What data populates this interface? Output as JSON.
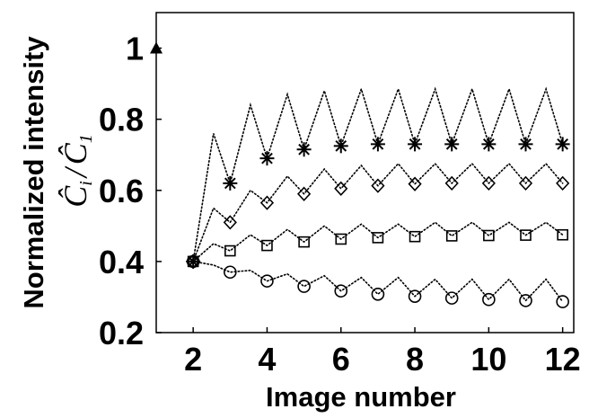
{
  "chart_data": {
    "type": "line",
    "xlabel": "Image number",
    "ylabel": "Normalized intensity",
    "ylabel_math": {
      "numerator": "Ĉ",
      "numerator_sub": "i",
      "slash": "/",
      "denominator": "Ĉ",
      "denominator_sub": "1"
    },
    "xlim": [
      1,
      12.3
    ],
    "ylim": [
      0.2,
      1.1
    ],
    "xticks": [
      2,
      4,
      6,
      8,
      10,
      12
    ],
    "xtick_labels": [
      "2",
      "4",
      "6",
      "8",
      "10",
      "12"
    ],
    "yticks": [
      0.2,
      0.4,
      0.6,
      0.8,
      1.0
    ],
    "ytick_labels": [
      "0.2",
      "0.4",
      "0.6",
      "0.8",
      "1"
    ],
    "grid": false,
    "reference_point": {
      "x": 1,
      "y": 1.0,
      "marker": "triangle"
    },
    "sawtooth_peaks": [
      {
        "marker": "star",
        "x": [
          2.55,
          3.55,
          4.55,
          5.55,
          6.55,
          7.55,
          8.55,
          9.55,
          10.55,
          11.55
        ],
        "y": [
          0.76,
          0.84,
          0.87,
          0.88,
          0.885,
          0.885,
          0.885,
          0.885,
          0.885,
          0.885
        ]
      },
      {
        "marker": "diamond",
        "x": [
          2.55,
          3.55,
          4.55,
          5.55,
          6.55,
          7.55,
          8.55,
          9.55,
          10.55,
          11.55
        ],
        "y": [
          0.55,
          0.6,
          0.64,
          0.66,
          0.67,
          0.675,
          0.675,
          0.675,
          0.675,
          0.675
        ]
      },
      {
        "marker": "square",
        "x": [
          2.55,
          3.55,
          4.55,
          5.55,
          6.55,
          7.55,
          8.55,
          9.55,
          10.55,
          11.55
        ],
        "y": [
          0.45,
          0.475,
          0.49,
          0.5,
          0.505,
          0.505,
          0.51,
          0.51,
          0.51,
          0.51
        ]
      },
      {
        "marker": "circle",
        "x": [
          2.55,
          3.55,
          4.55,
          5.55,
          6.55,
          7.55,
          8.55,
          9.55,
          10.55,
          11.55
        ],
        "y": [
          0.39,
          0.375,
          0.365,
          0.36,
          0.355,
          0.355,
          0.35,
          0.35,
          0.35,
          0.35
        ]
      }
    ],
    "series": [
      {
        "marker": "star",
        "x": [
          2,
          3,
          4,
          5,
          6,
          7,
          8,
          9,
          10,
          11,
          12
        ],
        "y": [
          0.4,
          0.62,
          0.69,
          0.715,
          0.725,
          0.73,
          0.73,
          0.73,
          0.73,
          0.73,
          0.73
        ]
      },
      {
        "marker": "diamond",
        "x": [
          2,
          3,
          4,
          5,
          6,
          7,
          8,
          9,
          10,
          11,
          12
        ],
        "y": [
          0.4,
          0.51,
          0.565,
          0.59,
          0.605,
          0.613,
          0.618,
          0.62,
          0.62,
          0.62,
          0.62
        ]
      },
      {
        "marker": "square",
        "x": [
          2,
          3,
          4,
          5,
          6,
          7,
          8,
          9,
          10,
          11,
          12
        ],
        "y": [
          0.4,
          0.43,
          0.445,
          0.455,
          0.463,
          0.467,
          0.47,
          0.472,
          0.473,
          0.474,
          0.475
        ]
      },
      {
        "marker": "circle",
        "x": [
          2,
          3,
          4,
          5,
          6,
          7,
          8,
          9,
          10,
          11,
          12
        ],
        "y": [
          0.4,
          0.37,
          0.345,
          0.33,
          0.317,
          0.308,
          0.302,
          0.297,
          0.293,
          0.29,
          0.287
        ]
      }
    ]
  }
}
